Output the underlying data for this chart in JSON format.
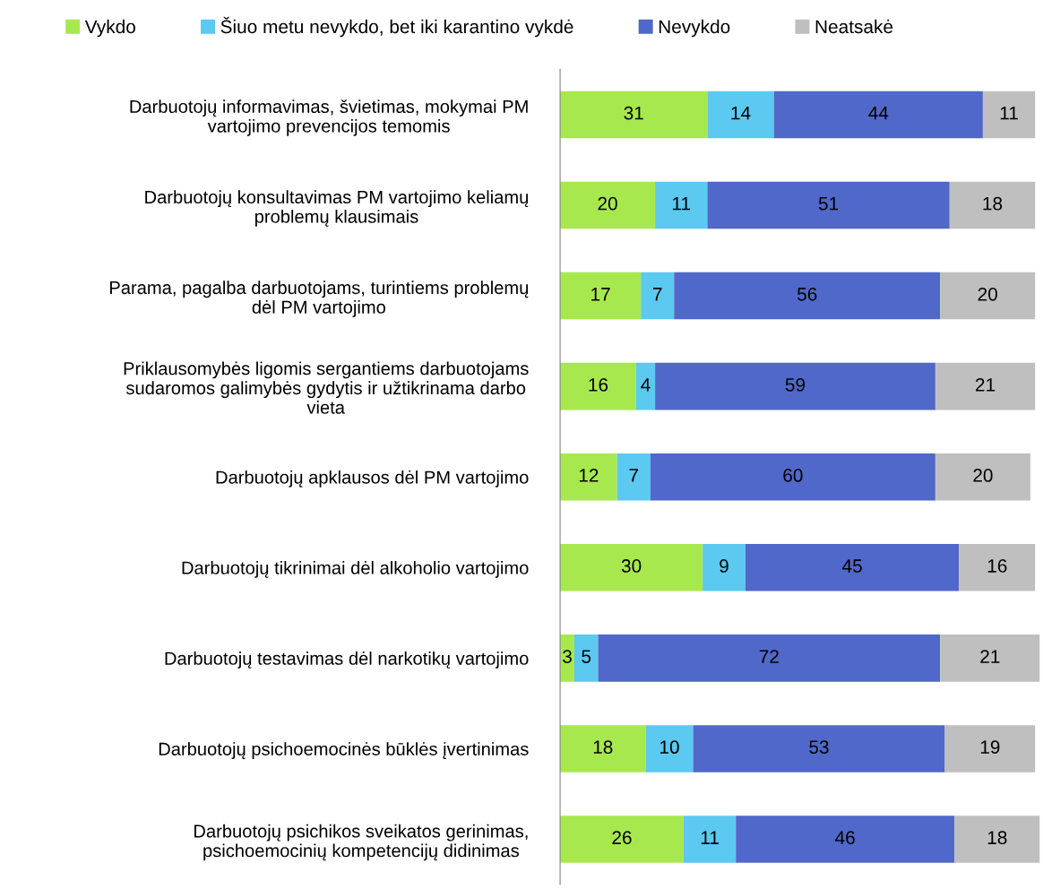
{
  "chart_data": {
    "type": "bar",
    "orientation": "horizontal",
    "stacked": true,
    "data_labels": true,
    "legend": "top",
    "grid": false,
    "tick_labels": "y",
    "xlim": [
      0,
      101
    ],
    "categories": [
      "Darbuotojų informavimas, švietimas, mokymai PM\nvartojimo prevencijos temomis",
      "Darbuotojų konsultavimas PM vartojimo keliamų\nproblemų klausimais",
      "Parama, pagalba darbuotojams, turintiems problemų\ndėl PM vartojimo",
      "Priklausomybės ligomis sergantiems darbuotojams\nsudaromos galimybės gydytis ir užtikrinama darbo\nvieta",
      "Darbuotojų apklausos dėl PM vartojimo",
      "Darbuotojų tikrinimai dėl alkoholio vartojimo",
      "Darbuotojų testavimas dėl narkotikų vartojimo",
      "Darbuotojų psichoemocinės būklės įvertinimas",
      "Darbuotojų psichikos sveikatos gerinimas,\npsichoemocinių kompetencijų didinimas"
    ],
    "series": [
      {
        "name": "Vykdo",
        "color": "#a8e84f",
        "values": [
          31,
          20,
          17,
          16,
          12,
          30,
          3,
          18,
          26
        ]
      },
      {
        "name": "Šiuo metu nevykdo, bet iki karantino vykdė",
        "color": "#5bc9f0",
        "values": [
          14,
          11,
          7,
          4,
          7,
          9,
          5,
          10,
          11
        ]
      },
      {
        "name": "Nevykdo",
        "color": "#4f68c9",
        "values": [
          44,
          51,
          56,
          59,
          60,
          45,
          72,
          53,
          46
        ]
      },
      {
        "name": "Neatsakė",
        "color": "#bfbfbf",
        "values": [
          11,
          18,
          20,
          21,
          20,
          16,
          21,
          19,
          18
        ]
      }
    ]
  }
}
